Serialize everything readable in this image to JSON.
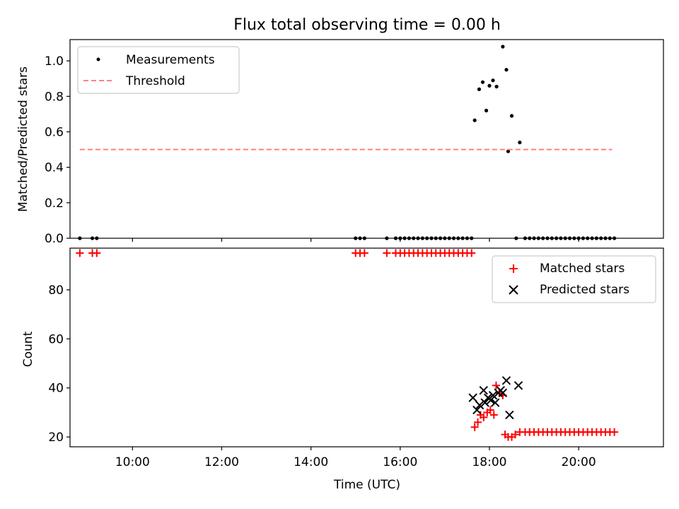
{
  "figure": {
    "title": "Flux total observing time = 0.00 h"
  },
  "chart_data": [
    {
      "type": "scatter",
      "ylabel": "Matched/Predicted stars",
      "xlim": [
        8.6,
        21.9
      ],
      "ylim": [
        0,
        1.12
      ],
      "yticks": [
        0.0,
        0.2,
        0.4,
        0.6,
        0.8,
        1.0
      ],
      "ytick_labels": [
        "0.0",
        "0.2",
        "0.4",
        "0.6",
        "0.8",
        "1.0"
      ],
      "xticks": [
        10,
        12,
        14,
        16,
        18,
        20
      ],
      "legend_position": "top-left",
      "series": [
        {
          "name": "Measurements",
          "marker": "dot",
          "color": "#000000",
          "x": [
            8.82,
            9.1,
            9.2,
            15.0,
            15.1,
            15.2,
            15.7,
            15.9,
            16.0,
            16.1,
            16.2,
            16.3,
            16.4,
            16.5,
            16.6,
            16.7,
            16.8,
            16.9,
            17.0,
            17.1,
            17.2,
            17.3,
            17.4,
            17.5,
            17.6,
            17.67,
            17.77,
            17.85,
            17.93,
            18.0,
            18.08,
            18.16,
            18.3,
            18.38,
            18.5,
            18.6,
            18.68,
            18.8,
            18.9,
            19.0,
            19.1,
            19.2,
            19.3,
            19.4,
            19.5,
            19.6,
            19.7,
            19.8,
            19.9,
            20.0,
            20.1,
            20.2,
            20.3,
            20.4,
            20.5,
            20.6,
            20.7,
            20.8
          ],
          "y": [
            0,
            0,
            0,
            0,
            0,
            0,
            0,
            0,
            0,
            0,
            0,
            0,
            0,
            0,
            0,
            0,
            0,
            0,
            0,
            0,
            0,
            0,
            0,
            0,
            0,
            0.665,
            0.84,
            0.88,
            0.72,
            0.86,
            0.89,
            0.855,
            1.08,
            0.95,
            0.69,
            0.0,
            0.54,
            0,
            0,
            0,
            0,
            0,
            0,
            0,
            0,
            0,
            0,
            0,
            0,
            0,
            0,
            0,
            0,
            0,
            0,
            0,
            0,
            0
          ],
          "extra_points": [
            [
              18.42,
              0.49
            ]
          ]
        },
        {
          "name": "Threshold",
          "style": "dashed",
          "color": "#ff7f7f",
          "x": [
            8.82,
            20.75
          ],
          "y": [
            0.5,
            0.5
          ]
        }
      ]
    },
    {
      "type": "scatter",
      "xlabel": "Time (UTC)",
      "ylabel": "Count",
      "xlim": [
        8.6,
        21.9
      ],
      "ylim": [
        16,
        97
      ],
      "yticks": [
        20,
        40,
        60,
        80
      ],
      "ytick_labels": [
        "20",
        "40",
        "60",
        "80"
      ],
      "xticks": [
        10,
        12,
        14,
        16,
        18,
        20
      ],
      "xtick_labels": [
        "10:00",
        "12:00",
        "14:00",
        "16:00",
        "18:00",
        "20:00"
      ],
      "legend_position": "top-right",
      "series": [
        {
          "name": "Matched stars",
          "marker": "plus",
          "color": "#ff0000",
          "x": [
            8.82,
            9.1,
            9.2,
            15.0,
            15.1,
            15.2,
            15.7,
            15.9,
            16.0,
            16.1,
            16.2,
            16.3,
            16.4,
            16.5,
            16.6,
            16.7,
            16.8,
            16.9,
            17.0,
            17.1,
            17.2,
            17.3,
            17.4,
            17.5,
            17.6,
            17.67,
            17.74,
            17.8,
            17.87,
            17.95,
            18.02,
            18.1,
            18.15,
            18.22,
            18.3,
            18.35,
            18.42,
            18.5,
            18.58,
            18.68,
            18.8,
            18.9,
            19.0,
            19.1,
            19.2,
            19.3,
            19.4,
            19.5,
            19.6,
            19.7,
            19.8,
            19.9,
            20.0,
            20.1,
            20.2,
            20.3,
            20.4,
            20.5,
            20.6,
            20.7,
            20.8
          ],
          "y": [
            95,
            95,
            95,
            95,
            95,
            95,
            95,
            95,
            95,
            95,
            95,
            95,
            95,
            95,
            95,
            95,
            95,
            95,
            95,
            95,
            95,
            95,
            95,
            95,
            95,
            24,
            26,
            29,
            28,
            30,
            31,
            29,
            41,
            38,
            37,
            21,
            20,
            20,
            21,
            22,
            22,
            22,
            22,
            22,
            22,
            22,
            22,
            22,
            22,
            22,
            22,
            22,
            22,
            22,
            22,
            22,
            22,
            22,
            22,
            22,
            22
          ]
        },
        {
          "name": "Predicted stars",
          "marker": "x",
          "color": "#000000",
          "x": [
            17.63,
            17.72,
            17.78,
            17.87,
            17.9,
            17.97,
            18.03,
            18.08,
            18.13,
            18.2,
            18.25,
            18.3,
            18.38,
            18.45,
            18.65
          ],
          "y": [
            36,
            31,
            33,
            39,
            34,
            36,
            35,
            37,
            34,
            38,
            39,
            38,
            43,
            29,
            41
          ]
        }
      ]
    }
  ]
}
